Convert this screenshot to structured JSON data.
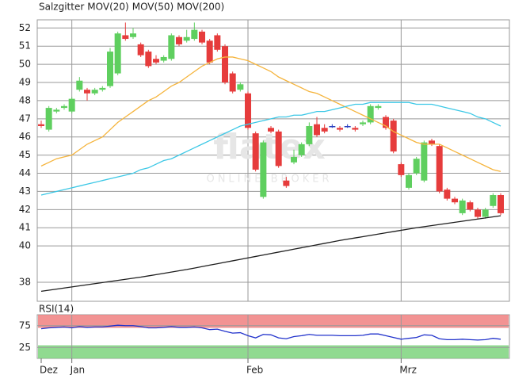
{
  "chart_data": [
    {
      "type": "candlestick",
      "title": "Salzgitter",
      "title_color": "#e8603c",
      "watermark": {
        "logo": "flatex",
        "tagline": "ONLINE BROKER"
      },
      "ylim": [
        36.95,
        52.45
      ],
      "yticks": [
        38,
        40,
        41,
        42,
        43,
        44,
        45,
        46,
        47,
        48,
        49,
        50,
        51,
        52
      ],
      "grid": true,
      "up_color": "#5fcf5f",
      "down_color": "#e63c3c",
      "flat_color": "#2a3fc0",
      "open": [
        46.7,
        46.4,
        47.4,
        47.6,
        47.4,
        48.6,
        48.6,
        48.4,
        48.6,
        48.8,
        49.5,
        51.6,
        51.5,
        51.1,
        50.7,
        50.3,
        50.2,
        50.3,
        51.5,
        51.3,
        51.4,
        51.8,
        51.3,
        51.6,
        51.0,
        49.5,
        48.6,
        48.4,
        46.2,
        42.7,
        46.5,
        46.3,
        43.6,
        44.6,
        45.0,
        45.6,
        46.7,
        46.5,
        46.6,
        46.5,
        46.6,
        46.5,
        46.7,
        46.8,
        47.6,
        47.1,
        46.9,
        44.5,
        43.2,
        44.0,
        43.6,
        45.8,
        45.5,
        43.1,
        42.6,
        41.8,
        42.4,
        42.0,
        41.6,
        42.2,
        42.8
      ],
      "high": [
        46.9,
        47.7,
        47.6,
        47.8,
        48.2,
        49.3,
        48.7,
        48.7,
        48.8,
        50.9,
        51.8,
        52.3,
        52.0,
        51.2,
        50.8,
        50.5,
        50.5,
        51.7,
        51.6,
        51.9,
        52.3,
        51.9,
        51.4,
        51.7,
        51.1,
        49.6,
        49.0,
        48.5,
        46.3,
        45.8,
        46.6,
        46.4,
        43.8,
        45.3,
        45.7,
        46.8,
        47.1,
        46.7,
        46.7,
        46.6,
        46.7,
        46.6,
        46.9,
        47.8,
        47.8,
        47.2,
        47.0,
        44.6,
        44.0,
        44.9,
        45.8,
        45.9,
        45.6,
        43.2,
        42.7,
        42.6,
        42.5,
        42.1,
        42.1,
        42.9,
        42.9
      ],
      "low": [
        46.5,
        46.3,
        47.3,
        47.5,
        47.3,
        48.5,
        48.0,
        48.3,
        48.5,
        48.7,
        49.4,
        51.3,
        51.4,
        50.4,
        49.8,
        50.0,
        50.1,
        50.2,
        51.0,
        51.2,
        51.3,
        51.1,
        50.0,
        50.7,
        48.9,
        48.4,
        48.5,
        46.4,
        44.1,
        42.6,
        46.2,
        44.3,
        43.2,
        44.5,
        44.9,
        45.5,
        46.0,
        46.2,
        46.5,
        46.3,
        46.5,
        46.3,
        46.6,
        46.7,
        47.5,
        46.4,
        45.1,
        43.8,
        43.1,
        43.9,
        43.5,
        45.5,
        42.9,
        42.5,
        42.3,
        41.7,
        41.9,
        41.5,
        41.5,
        42.1,
        41.7
      ],
      "close": [
        46.6,
        47.6,
        47.5,
        47.7,
        48.1,
        49.1,
        48.4,
        48.6,
        48.7,
        50.7,
        51.7,
        51.4,
        51.7,
        50.5,
        49.9,
        50.1,
        50.4,
        51.6,
        51.1,
        51.5,
        51.9,
        51.2,
        50.1,
        50.8,
        49.0,
        48.5,
        48.9,
        46.5,
        44.2,
        45.7,
        46.3,
        44.4,
        43.3,
        44.9,
        45.6,
        46.6,
        46.1,
        46.3,
        46.6,
        46.4,
        46.6,
        46.4,
        46.8,
        47.7,
        47.7,
        46.5,
        45.2,
        43.9,
        43.9,
        44.8,
        45.7,
        45.6,
        43.0,
        42.6,
        42.4,
        42.5,
        42.0,
        41.6,
        42.0,
        42.8,
        41.8
      ],
      "series": [
        {
          "name": "MOV(20)",
          "color": "#f5b43c",
          "values": [
            44.4,
            44.6,
            44.8,
            44.9,
            45.0,
            45.3,
            45.6,
            45.8,
            46.0,
            46.4,
            46.8,
            47.1,
            47.4,
            47.7,
            48.0,
            48.2,
            48.5,
            48.8,
            49.0,
            49.3,
            49.6,
            49.9,
            50.1,
            50.3,
            50.4,
            50.4,
            50.3,
            50.2,
            50.0,
            49.8,
            49.6,
            49.3,
            49.1,
            48.9,
            48.7,
            48.5,
            48.4,
            48.2,
            48.0,
            47.8,
            47.6,
            47.4,
            47.2,
            47.0,
            46.8,
            46.6,
            46.3,
            46.1,
            45.9,
            45.7,
            45.6,
            45.6,
            45.6,
            45.4,
            45.2,
            45.0,
            44.8,
            44.6,
            44.4,
            44.2,
            44.1
          ]
        },
        {
          "name": "MOV(50)",
          "color": "#3cc8e6",
          "values": [
            42.8,
            42.9,
            43.0,
            43.1,
            43.2,
            43.3,
            43.4,
            43.5,
            43.6,
            43.7,
            43.8,
            43.9,
            44.0,
            44.2,
            44.3,
            44.5,
            44.7,
            44.8,
            45.0,
            45.2,
            45.4,
            45.6,
            45.8,
            46.0,
            46.2,
            46.4,
            46.6,
            46.7,
            46.8,
            46.9,
            47.0,
            47.1,
            47.1,
            47.2,
            47.2,
            47.3,
            47.4,
            47.4,
            47.5,
            47.6,
            47.7,
            47.8,
            47.8,
            47.9,
            47.9,
            47.9,
            47.9,
            47.9,
            47.9,
            47.8,
            47.8,
            47.8,
            47.7,
            47.6,
            47.5,
            47.4,
            47.3,
            47.1,
            47.0,
            46.8,
            46.6
          ]
        },
        {
          "name": "MOV(200)",
          "color": "#1e1e1e",
          "values": [
            37.5,
            37.56,
            37.62,
            37.68,
            37.74,
            37.8,
            37.86,
            37.92,
            37.98,
            38.04,
            38.1,
            38.16,
            38.22,
            38.28,
            38.35,
            38.42,
            38.49,
            38.56,
            38.63,
            38.7,
            38.78,
            38.86,
            38.94,
            39.02,
            39.1,
            39.18,
            39.26,
            39.34,
            39.42,
            39.5,
            39.58,
            39.66,
            39.74,
            39.82,
            39.9,
            39.98,
            40.06,
            40.14,
            40.22,
            40.3,
            40.37,
            40.44,
            40.51,
            40.58,
            40.65,
            40.72,
            40.79,
            40.86,
            40.93,
            41.0,
            41.06,
            41.12,
            41.18,
            41.24,
            41.3,
            41.36,
            41.42,
            41.48,
            41.54,
            41.6,
            41.66
          ]
        }
      ]
    },
    {
      "type": "line",
      "title": "RSI(14)",
      "categories": [
        "Dez",
        null,
        null,
        null,
        "Jan",
        null,
        null,
        null,
        null,
        null,
        null,
        null,
        null,
        null,
        null,
        null,
        null,
        null,
        null,
        null,
        null,
        null,
        null,
        null,
        null,
        null,
        null,
        "Feb",
        null,
        null,
        null,
        null,
        null,
        null,
        null,
        null,
        null,
        null,
        null,
        null,
        null,
        null,
        null,
        null,
        null,
        null,
        null,
        "Mrz",
        null,
        null,
        null,
        null,
        null,
        null,
        null,
        null,
        null,
        null,
        null,
        null,
        null
      ],
      "ylim": [
        0,
        100
      ],
      "yticks": [
        25,
        75
      ],
      "grid": true,
      "bands": [
        {
          "range": [
            70,
            100
          ],
          "color": "#f08080"
        },
        {
          "range": [
            0,
            30
          ],
          "color": "#7dd37d"
        }
      ],
      "series": [
        {
          "name": "RSI(14)",
          "color": "#2233cc",
          "values": [
            68,
            70,
            71,
            72,
            70,
            73,
            71,
            72,
            72,
            74,
            76,
            75,
            75,
            73,
            70,
            70,
            71,
            73,
            71,
            71,
            72,
            70,
            66,
            67,
            62,
            58,
            59,
            52,
            47,
            55,
            54,
            47,
            45,
            50,
            52,
            55,
            53,
            53,
            53,
            52,
            52,
            52,
            53,
            56,
            56,
            52,
            48,
            44,
            46,
            48,
            54,
            53,
            45,
            43,
            43,
            44,
            43,
            42,
            43,
            46,
            44
          ]
        }
      ]
    }
  ]
}
